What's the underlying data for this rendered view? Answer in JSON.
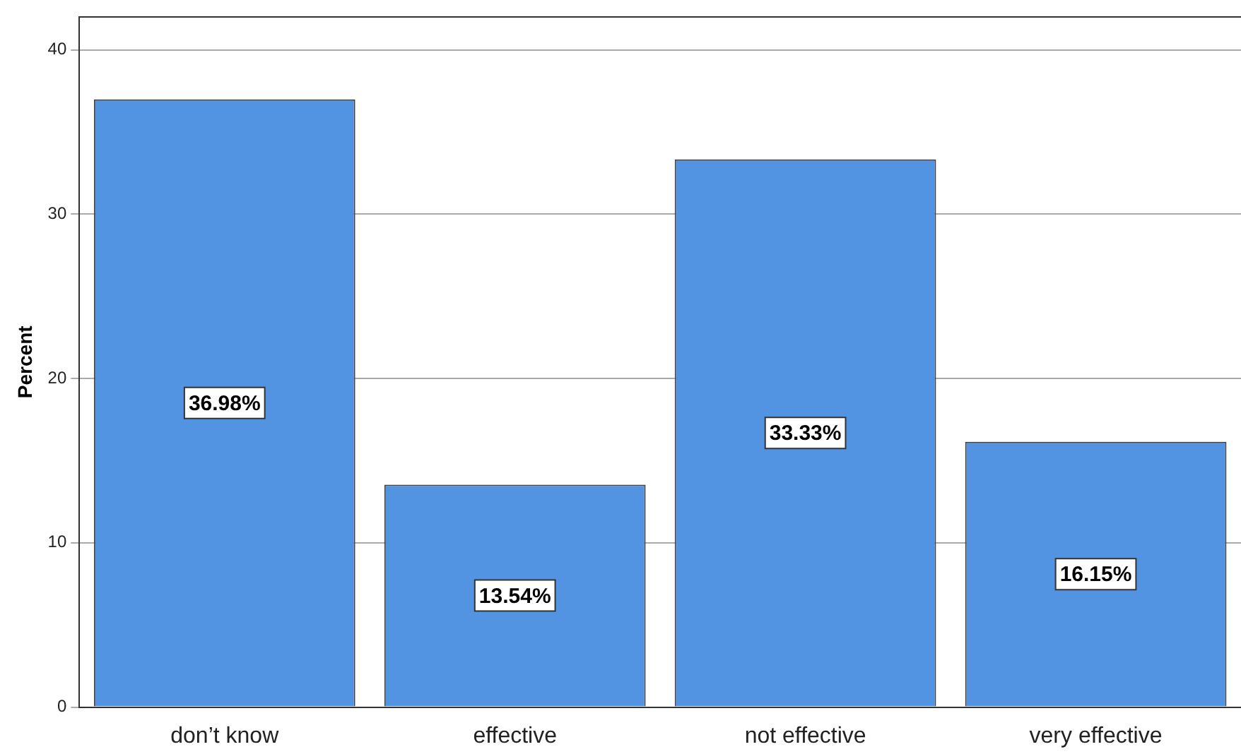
{
  "chart_data": {
    "type": "bar",
    "ylabel": "Percent",
    "categories": [
      "don’t know",
      "effective",
      "not effective",
      "very effective"
    ],
    "values": [
      36.98,
      13.54,
      33.33,
      16.15
    ],
    "value_labels": [
      "36.98%",
      "13.54%",
      "33.33%",
      "16.15%"
    ],
    "color": "#5294e2",
    "ylim": [
      0,
      42
    ],
    "yticks": [
      0,
      10,
      20,
      30,
      40
    ],
    "grid": "y",
    "legend": false
  }
}
